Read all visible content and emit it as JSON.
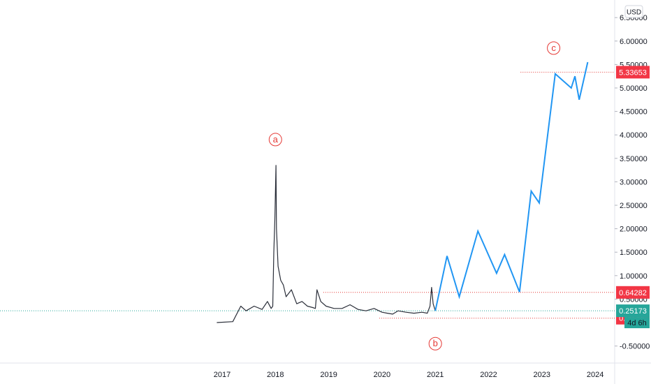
{
  "chart_data": {
    "type": "line",
    "currency_button": "USD",
    "y_ticks": [
      "-0.50000",
      "0.50000",
      "1.00000",
      "1.50000",
      "2.00000",
      "2.50000",
      "3.00000",
      "3.50000",
      "4.00000",
      "4.50000",
      "5.00000",
      "5.50000",
      "6.00000",
      "6.50000"
    ],
    "y_tick_values": [
      -0.5,
      0.5,
      1.0,
      1.5,
      2.0,
      2.5,
      3.0,
      3.5,
      4.0,
      4.5,
      5.0,
      5.5,
      6.0,
      6.5
    ],
    "x_ticks": [
      "2017",
      "2018",
      "2019",
      "2020",
      "2021",
      "2022",
      "2023",
      "2024"
    ],
    "x_tick_values": [
      2017,
      2018,
      2019,
      2020,
      2021,
      2022,
      2023,
      2024
    ],
    "ylim": [
      -0.8,
      6.8
    ],
    "xlim": [
      2013.0,
      2024.6
    ],
    "price_series": {
      "name": "price",
      "x": [
        2016.9,
        2017.2,
        2017.35,
        2017.45,
        2017.6,
        2017.75,
        2017.85,
        2017.92,
        2017.95,
        2017.97,
        2017.99,
        2018.01,
        2018.02,
        2018.05,
        2018.1,
        2018.15,
        2018.2,
        2018.3,
        2018.4,
        2018.5,
        2018.6,
        2018.7,
        2018.75,
        2018.78,
        2018.85,
        2018.95,
        2019.1,
        2019.25,
        2019.4,
        2019.55,
        2019.7,
        2019.85,
        2020.0,
        2020.1,
        2020.2,
        2020.3,
        2020.45,
        2020.6,
        2020.75,
        2020.85,
        2020.9,
        2020.93,
        2020.96,
        2021.0
      ],
      "y": [
        0.0,
        0.02,
        0.35,
        0.25,
        0.35,
        0.28,
        0.45,
        0.3,
        0.35,
        1.5,
        2.2,
        3.35,
        2.0,
        1.2,
        0.9,
        0.8,
        0.55,
        0.7,
        0.4,
        0.45,
        0.35,
        0.32,
        0.3,
        0.7,
        0.45,
        0.35,
        0.3,
        0.3,
        0.38,
        0.28,
        0.25,
        0.3,
        0.22,
        0.2,
        0.18,
        0.25,
        0.22,
        0.2,
        0.22,
        0.2,
        0.35,
        0.75,
        0.4,
        0.25
      ]
    },
    "projection_series": {
      "name": "projection",
      "x": [
        2021.0,
        2021.22,
        2021.45,
        2021.8,
        2022.15,
        2022.3,
        2022.58,
        2022.8,
        2022.95,
        2023.25,
        2023.55,
        2023.62,
        2023.7,
        2023.86
      ],
      "y": [
        0.25,
        1.42,
        0.55,
        1.95,
        1.05,
        1.45,
        0.65,
        2.8,
        2.55,
        5.3,
        5.0,
        5.25,
        4.75,
        5.55
      ]
    },
    "horizontal_levels": [
      {
        "value": 5.33653,
        "label": "5.33653",
        "x_start": 2022.6
      },
      {
        "value": 0.64282,
        "label": "0.64282",
        "x_start": 2018.9
      },
      {
        "value": 0.09306,
        "label": "0.09306",
        "x_start": 2019.95
      }
    ],
    "current_price": {
      "value": 0.25173,
      "label": "0.25173",
      "countdown": "4d 6h"
    },
    "wave_labels": [
      {
        "text": "a",
        "x": 2018.0,
        "y": 3.9
      },
      {
        "text": "b",
        "x": 2021.0,
        "y": -0.45
      },
      {
        "text": "c",
        "x": 2023.22,
        "y": 5.85
      }
    ],
    "colors": {
      "price": "#2a2e39",
      "projection": "#2196f3",
      "level": "#e53935",
      "current": "#26a69a",
      "tag_red": "#f23645",
      "tag_teal": "#26a69a",
      "grid": "#e0e3eb"
    }
  }
}
